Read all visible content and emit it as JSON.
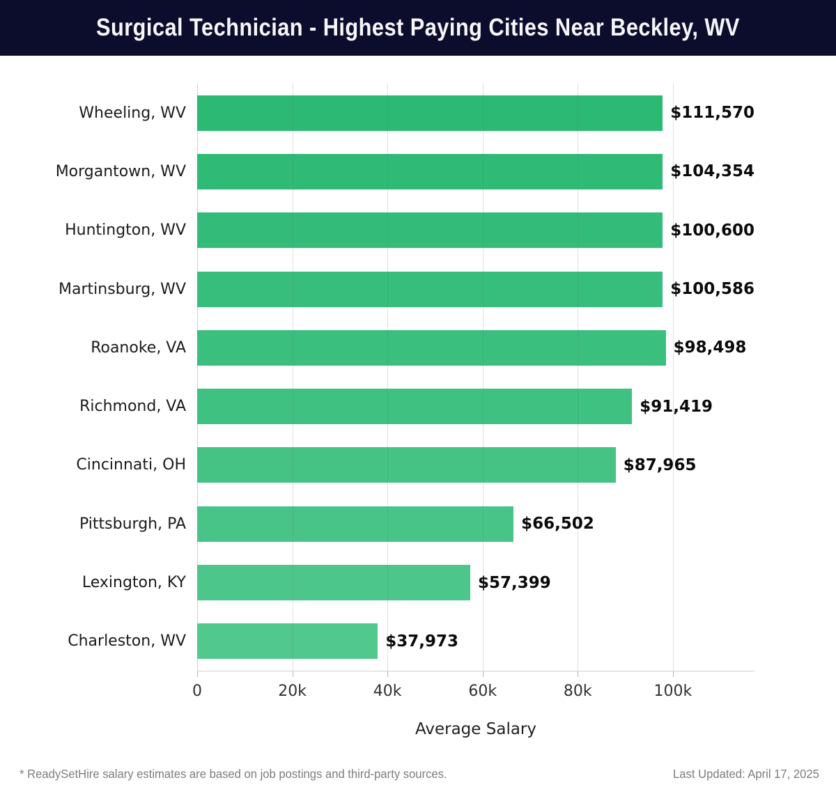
{
  "header": {
    "title": "Surgical Technician - Highest Paying Cities Near Beckley, WV",
    "bg_color": "#0c0c2d",
    "text_color": "#f7f7fa"
  },
  "chart_data": {
    "type": "bar",
    "orientation": "horizontal",
    "title": "Surgical Technician - Highest Paying Cities Near Beckley, WV",
    "xlabel": "Average Salary",
    "ylabel": "",
    "categories": [
      "Wheeling, WV",
      "Morgantown, WV",
      "Huntington, WV",
      "Martinsburg, WV",
      "Roanoke, VA",
      "Richmond, VA",
      "Cincinnati, OH",
      "Pittsburgh, PA",
      "Lexington, KY",
      "Charleston, WV"
    ],
    "values": [
      111570,
      104354,
      100600,
      100586,
      98498,
      91419,
      87965,
      66502,
      57399,
      37973
    ],
    "value_labels": [
      "$111,570",
      "$104,354",
      "$100,600",
      "$100,586",
      "$98,498",
      "$91,419",
      "$87,965",
      "$66,502",
      "$57,399",
      "$37,973"
    ],
    "bar_colors": [
      "#2cb974",
      "#2fba76",
      "#33bc79",
      "#37bd7c",
      "#3bbf7f",
      "#3fc182",
      "#44c385",
      "#48c488",
      "#4cc68b",
      "#51c88e"
    ],
    "xlim": [
      0,
      117150
    ],
    "x_ticks": [
      {
        "value": 0,
        "label": "0"
      },
      {
        "value": 20000,
        "label": "20k"
      },
      {
        "value": 40000,
        "label": "40k"
      },
      {
        "value": 60000,
        "label": "60k"
      },
      {
        "value": 80000,
        "label": "80k"
      },
      {
        "value": 100000,
        "label": "100k"
      }
    ],
    "grid": "vertical",
    "gridline_color": "rgba(110,110,110,0.22)",
    "legend": "none"
  },
  "footer": {
    "note": "* ReadySetHire salary estimates are based on job postings and third-party sources.",
    "last_updated": "Last Updated: April 17, 2025"
  }
}
